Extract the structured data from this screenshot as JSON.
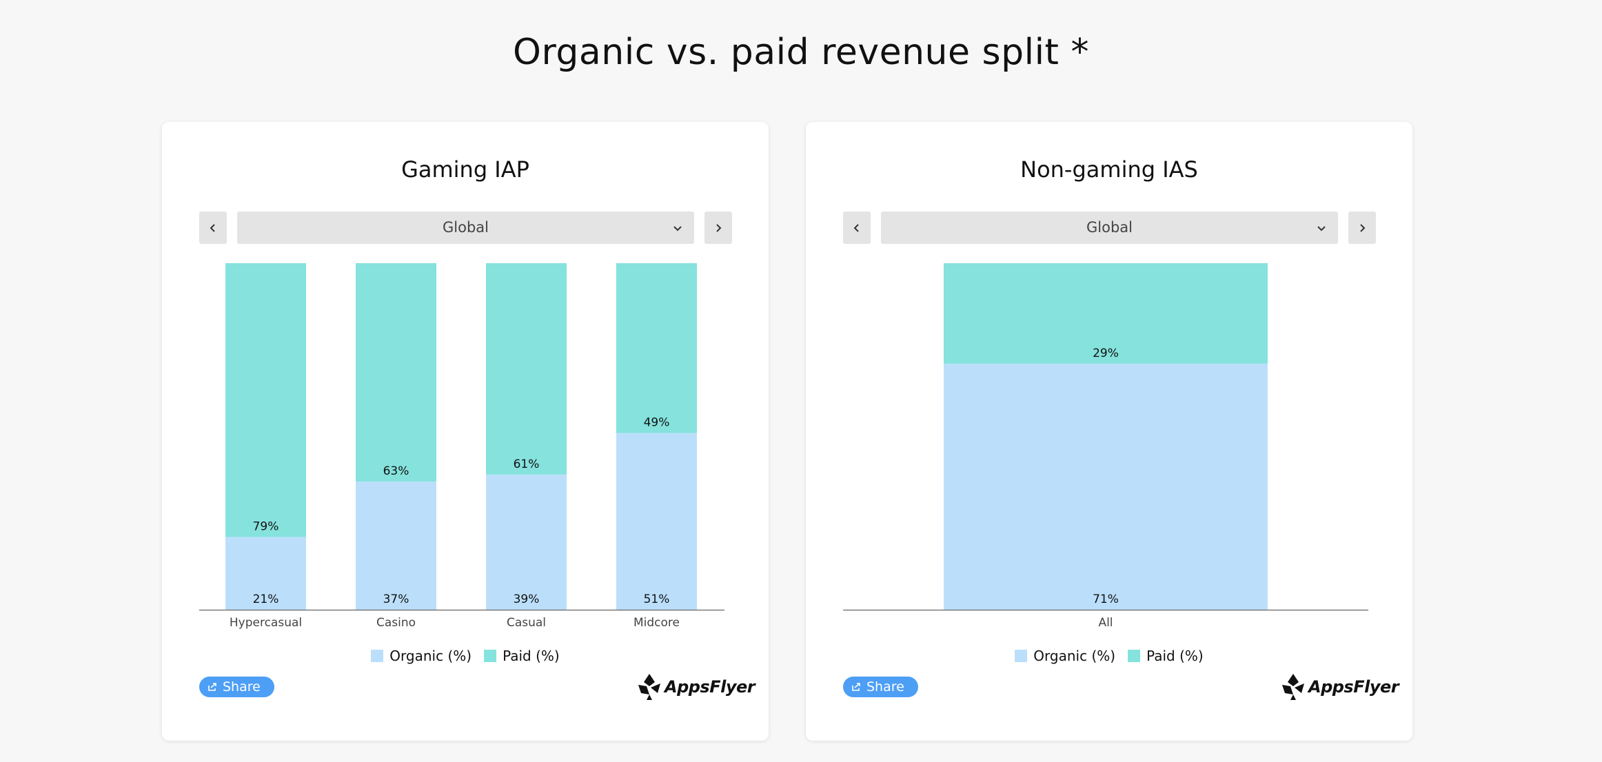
{
  "page": {
    "title": "Organic vs. paid revenue split *"
  },
  "colors": {
    "organic": "#bbdffb",
    "paid": "#85e2dd",
    "share": "#4d9ef5",
    "axis": "#666666"
  },
  "charts": [
    {
      "title": "Gaming IAP",
      "region": "Global",
      "share_label": "Share",
      "logo_text": "AppsFlyer",
      "legend": [
        "Organic (%)",
        "Paid (%)"
      ]
    },
    {
      "title": "Non-gaming IAS",
      "region": "Global",
      "share_label": "Share",
      "logo_text": "AppsFlyer",
      "legend": [
        "Organic (%)",
        "Paid (%)"
      ]
    }
  ],
  "chart_data": [
    {
      "type": "bar",
      "stacked": true,
      "title": "Gaming IAP",
      "categories": [
        "Hypercasual",
        "Casino",
        "Casual",
        "Midcore"
      ],
      "series": [
        {
          "name": "Organic (%)",
          "values": [
            21,
            37,
            39,
            51
          ],
          "labels": [
            "21%",
            "37%",
            "39%",
            "51%"
          ]
        },
        {
          "name": "Paid (%)",
          "values": [
            79,
            63,
            61,
            49
          ],
          "labels": [
            "79%",
            "63%",
            "61%",
            "49%"
          ]
        }
      ],
      "ylim": [
        0,
        100
      ],
      "grid": false,
      "legend_position": "bottom"
    },
    {
      "type": "bar",
      "stacked": true,
      "title": "Non-gaming IAS",
      "categories": [
        "All"
      ],
      "series": [
        {
          "name": "Organic (%)",
          "values": [
            71
          ],
          "labels": [
            "71%"
          ]
        },
        {
          "name": "Paid (%)",
          "values": [
            29
          ],
          "labels": [
            "29%"
          ]
        }
      ],
      "ylim": [
        0,
        100
      ],
      "grid": false,
      "legend_position": "bottom"
    }
  ]
}
